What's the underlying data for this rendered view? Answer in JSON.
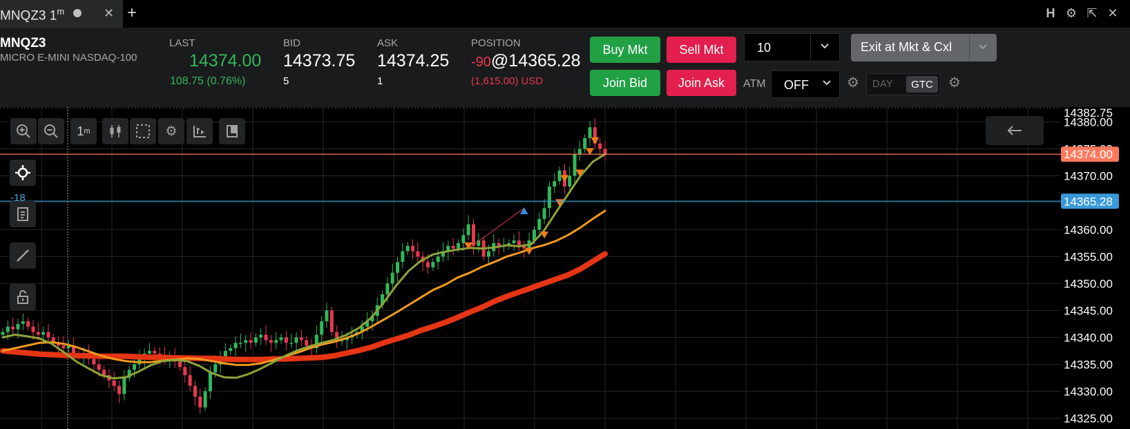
{
  "tab": {
    "title": "MNQZ3 1",
    "interval_sup": "m",
    "close": "✕",
    "add": "+"
  },
  "window": {
    "h_label": "H"
  },
  "quote": {
    "symbol": "MNQZ3",
    "description": "MICRO E-MINI NASDAQ-100",
    "last_label": "LAST",
    "last": "14374.00",
    "change": "108.75 (0.76%)",
    "bid_label": "BID",
    "bid": "14373.75",
    "bid_size": "5",
    "ask_label": "ASK",
    "ask": "14374.25",
    "ask_size": "1",
    "position_label": "POSITION",
    "position_qty": "-90",
    "position_price": "@14365.28",
    "position_pnl": "(1,615.00) USD"
  },
  "orders": {
    "buy_mkt": "Buy Mkt",
    "sell_mkt": "Sell Mkt",
    "join_bid": "Join Bid",
    "join_ask": "Join Ask",
    "quantity": "10",
    "exit": "Exit at Mkt & Cxl",
    "atm_label": "ATM",
    "atm_value": "OFF",
    "tif_day": "DAY",
    "tif_gtc": "GTC",
    "tif_selected": "GTC"
  },
  "chart_toolbar": {
    "interval": "1",
    "interval_sup": "m",
    "position_marker": "-18"
  },
  "colors": {
    "up": "#30b85b",
    "down": "#e8384f",
    "buy": "#21a045",
    "sell": "#e21f4d",
    "last_line": "#ff7a5c",
    "position_line": "#3a9ad9",
    "ma_fast": "#8ea33a",
    "ma_mid": "#f39a1e",
    "ma_slow": "#e53515",
    "sell_marker": "#f07a1a",
    "buy_marker": "#3a8ad6"
  },
  "chart_data": {
    "type": "candlestick",
    "interval": "1m",
    "ylim": [
      14323,
      14382.75
    ],
    "y_ticks": [
      14382.75,
      14380.0,
      14375.0,
      14370.0,
      14365.0,
      14360.0,
      14355.0,
      14350.0,
      14345.0,
      14340.0,
      14335.0,
      14330.0,
      14325.0
    ],
    "y_tick_labels": [
      "14382.75",
      "14380.00",
      "14375.00",
      "14370.00",
      "14365.00",
      "14360.00",
      "14355.00",
      "14350.00",
      "14345.00",
      "14340.00",
      "14335.00",
      "14330.00",
      "14325.00"
    ],
    "last_price": 14374.0,
    "last_price_label": "14374.00",
    "position_price": 14365.28,
    "position_price_label": "14365.28",
    "closes": [
      14341.0,
      14342.0,
      14341.5,
      14342.5,
      14343.0,
      14342.0,
      14341.0,
      14340.5,
      14341.0,
      14340.0,
      14339.0,
      14338.5,
      14338.0,
      14338.5,
      14337.0,
      14336.5,
      14337.0,
      14336.0,
      14335.0,
      14334.0,
      14333.0,
      14332.0,
      14331.0,
      14329.5,
      14332.5,
      14334.0,
      14335.0,
      14336.0,
      14337.0,
      14337.5,
      14337.0,
      14336.5,
      14336.0,
      14336.5,
      14335.5,
      14334.5,
      14333.0,
      14331.0,
      14329.0,
      14327.0,
      14330.0,
      14333.5,
      14335.0,
      14336.5,
      14337.5,
      14338.0,
      14339.0,
      14339.0,
      14339.5,
      14339.0,
      14340.0,
      14340.5,
      14339.5,
      14339.0,
      14339.5,
      14340.0,
      14339.0,
      14339.0,
      14340.0,
      14339.5,
      14338.5,
      14338.0,
      14340.5,
      14343.0,
      14345.0,
      14341.0,
      14339.5,
      14339.5,
      14340.0,
      14340.5,
      14341.0,
      14342.0,
      14343.0,
      14344.0,
      14346.0,
      14348.0,
      14350.0,
      14352.0,
      14354.0,
      14356.0,
      14357.0,
      14356.0,
      14355.0,
      14354.0,
      14353.0,
      14354.0,
      14355.0,
      14356.0,
      14357.0,
      14356.5,
      14357.5,
      14359.0,
      14361.0,
      14357.0,
      14358.0,
      14355.0,
      14356.0,
      14357.5,
      14357.0,
      14357.0,
      14357.5,
      14358.0,
      14357.0,
      14356.5,
      14358.0,
      14360.0,
      14362.0,
      14364.0,
      14368.0,
      14369.0,
      14371.0,
      14368.0,
      14370.0,
      14374.0,
      14375.0,
      14377.0,
      14379.0,
      14376.0,
      14375.0,
      14374.0
    ],
    "ma_fast": [
      14340.0,
      14340.5,
      14340.2,
      14339.8,
      14338.8,
      14337.2,
      14335.5,
      14334.2,
      14333.0,
      14332.4,
      14332.6,
      14333.6,
      14334.8,
      14335.6,
      14335.8,
      14335.6,
      14334.7,
      14333.4,
      14332.6,
      14332.5,
      14333.2,
      14334.2,
      14335.4,
      14336.6,
      14337.6,
      14338.4,
      14339.0,
      14339.6,
      14340.5,
      14341.8,
      14343.7,
      14346.5,
      14349.6,
      14352.3,
      14354.2,
      14355.4,
      14355.9,
      14356.3,
      14356.6,
      14356.5,
      14356.7,
      14357.1,
      14356.9,
      14357.3,
      14359.7,
      14363.2,
      14366.6,
      14370.0,
      14372.6,
      14374.0
    ],
    "ma_mid": [
      14337.5,
      14338.0,
      14338.5,
      14339.0,
      14339.1,
      14338.8,
      14338.2,
      14337.4,
      14336.6,
      14336.0,
      14335.6,
      14335.4,
      14335.4,
      14335.7,
      14335.9,
      14336.1,
      14336.0,
      14335.6,
      14335.2,
      14334.9,
      14334.9,
      14335.2,
      14335.8,
      14336.5,
      14337.2,
      14338.0,
      14338.7,
      14339.2,
      14339.9,
      14340.8,
      14342.0,
      14343.3,
      14344.6,
      14346.0,
      14347.4,
      14348.8,
      14349.8,
      14351.1,
      14352.0,
      14353.1,
      14354.0,
      14355.0,
      14355.7,
      14356.5,
      14357.1,
      14357.9,
      14359.0,
      14360.4,
      14362.0,
      14363.5
    ],
    "ma_slow": [
      14337.5,
      14337.3,
      14337.1,
      14336.9,
      14336.8,
      14336.7,
      14336.6,
      14336.6,
      14336.5,
      14336.5,
      14336.5,
      14336.4,
      14336.3,
      14336.3,
      14336.2,
      14336.2,
      14336.1,
      14336.1,
      14336.0,
      14335.9,
      14335.9,
      14335.9,
      14336.0,
      14336.0,
      14336.1,
      14336.2,
      14336.3,
      14336.6,
      14337.1,
      14337.6,
      14338.2,
      14339.0,
      14339.7,
      14340.4,
      14341.3,
      14342.0,
      14342.8,
      14343.7,
      14344.7,
      14345.6,
      14346.7,
      14347.6,
      14348.4,
      14349.2,
      14350.0,
      14350.8,
      14351.6,
      14352.7,
      14354.1,
      14355.5
    ]
  }
}
